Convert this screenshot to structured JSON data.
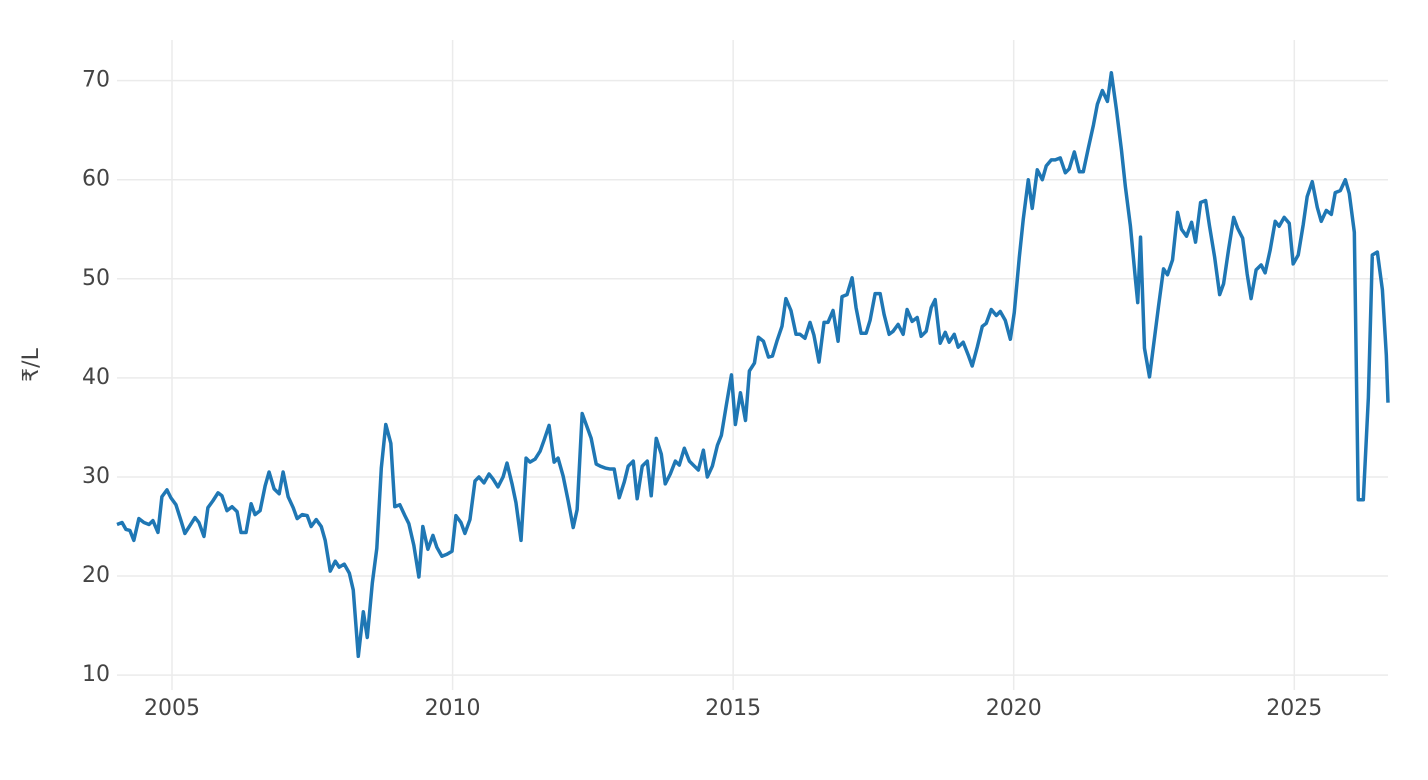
{
  "chart_data": {
    "type": "line",
    "y_label": "₹/L",
    "color": "#1f77b4",
    "grid": true,
    "xlim": [
      2004.02,
      2026.67
    ],
    "xticks": [
      2005,
      2010,
      2015,
      2020,
      2025
    ],
    "ylim": [
      8.5,
      74.1
    ],
    "yticks": [
      10,
      20,
      30,
      40,
      50,
      60,
      70
    ],
    "x": [
      2004.02,
      2004.11,
      2004.18,
      2004.25,
      2004.32,
      2004.41,
      2004.5,
      2004.59,
      2004.66,
      2004.75,
      2004.82,
      2004.91,
      2004.98,
      2005.07,
      2005.16,
      2005.23,
      2005.32,
      2005.41,
      2005.48,
      2005.57,
      2005.64,
      2005.73,
      2005.82,
      2005.89,
      2005.98,
      2006.07,
      2006.16,
      2006.23,
      2006.32,
      2006.41,
      2006.48,
      2006.57,
      2006.66,
      2006.73,
      2006.82,
      2006.91,
      2006.98,
      2007.07,
      2007.16,
      2007.23,
      2007.32,
      2007.41,
      2007.48,
      2007.57,
      2007.66,
      2007.73,
      2007.82,
      2007.91,
      2007.98,
      2008.07,
      2008.16,
      2008.23,
      2008.32,
      2008.41,
      2008.48,
      2008.57,
      2008.65,
      2008.73,
      2008.81,
      2008.9,
      2008.97,
      2009.06,
      2009.15,
      2009.22,
      2009.31,
      2009.4,
      2009.47,
      2009.56,
      2009.65,
      2009.72,
      2009.81,
      2009.9,
      2009.99,
      2010.06,
      2010.15,
      2010.22,
      2010.31,
      2010.4,
      2010.47,
      2010.56,
      2010.65,
      2010.72,
      2010.81,
      2010.9,
      2010.97,
      2011.06,
      2011.13,
      2011.22,
      2011.31,
      2011.38,
      2011.47,
      2011.56,
      2011.63,
      2011.72,
      2011.81,
      2011.88,
      2011.97,
      2012.06,
      2012.15,
      2012.22,
      2012.31,
      2012.4,
      2012.47,
      2012.56,
      2012.63,
      2012.72,
      2012.81,
      2012.88,
      2012.97,
      2013.06,
      2013.13,
      2013.22,
      2013.29,
      2013.38,
      2013.47,
      2013.54,
      2013.63,
      2013.72,
      2013.79,
      2013.88,
      2013.97,
      2014.04,
      2014.13,
      2014.22,
      2014.29,
      2014.38,
      2014.47,
      2014.54,
      2014.63,
      2014.72,
      2014.79,
      2014.88,
      2014.97,
      2015.04,
      2015.13,
      2015.22,
      2015.29,
      2015.38,
      2015.45,
      2015.54,
      2015.63,
      2015.7,
      2015.78,
      2015.87,
      2015.94,
      2016.03,
      2016.12,
      2016.19,
      2016.28,
      2016.37,
      2016.44,
      2016.53,
      2016.62,
      2016.69,
      2016.78,
      2016.87,
      2016.94,
      2017.03,
      2017.12,
      2017.19,
      2017.28,
      2017.37,
      2017.44,
      2017.53,
      2017.62,
      2017.69,
      2017.78,
      2017.85,
      2017.94,
      2018.03,
      2018.1,
      2018.19,
      2018.28,
      2018.35,
      2018.44,
      2018.53,
      2018.6,
      2018.69,
      2018.78,
      2018.85,
      2018.94,
      2019.01,
      2019.1,
      2019.19,
      2019.26,
      2019.35,
      2019.44,
      2019.51,
      2019.6,
      2019.69,
      2019.76,
      2019.85,
      2019.94,
      2020.01,
      2020.1,
      2020.17,
      2020.26,
      2020.33,
      2020.42,
      2020.51,
      2020.58,
      2020.67,
      2020.74,
      2020.83,
      2020.92,
      2020.99,
      2021.08,
      2021.17,
      2021.24,
      2021.33,
      2021.42,
      2021.49,
      2021.58,
      2021.67,
      2021.74,
      2021.83,
      2021.92,
      2021.99,
      2022.08,
      2022.17,
      2022.21,
      2022.26,
      2022.33,
      2022.42,
      2022.49,
      2022.58,
      2022.67,
      2022.74,
      2022.83,
      2022.92,
      2022.99,
      2023.08,
      2023.17,
      2023.24,
      2023.33,
      2023.42,
      2023.49,
      2023.58,
      2023.67,
      2023.74,
      2023.83,
      2023.92,
      2023.99,
      2024.08,
      2024.16,
      2024.23,
      2024.32,
      2024.41,
      2024.48,
      2024.57,
      2024.66,
      2024.73,
      2024.82,
      2024.91,
      2024.98,
      2025.07,
      2025.16,
      2025.23,
      2025.32,
      2025.41,
      2025.48,
      2025.57,
      2025.66,
      2025.73,
      2025.82,
      2025.91,
      2025.98,
      2026.07,
      2026.14,
      2026.23,
      2026.32,
      2026.39,
      2026.48,
      2026.57,
      2026.64,
      2026.67
    ],
    "values": [
      25.2,
      25.4,
      24.7,
      24.6,
      23.6,
      25.8,
      25.4,
      25.2,
      25.6,
      24.4,
      28.0,
      28.7,
      27.9,
      27.2,
      25.6,
      24.3,
      25.1,
      25.9,
      25.4,
      24.0,
      26.9,
      27.6,
      28.4,
      28.1,
      26.6,
      27.0,
      26.5,
      24.4,
      24.4,
      27.3,
      26.2,
      26.6,
      29.1,
      30.5,
      28.8,
      28.3,
      30.5,
      28.0,
      26.9,
      25.8,
      26.2,
      26.1,
      25.0,
      25.7,
      25.0,
      23.6,
      20.5,
      21.5,
      20.9,
      21.2,
      20.3,
      18.6,
      11.9,
      16.4,
      13.8,
      19.3,
      22.8,
      30.9,
      35.3,
      33.4,
      27.0,
      27.2,
      26.1,
      25.3,
      23.1,
      19.9,
      25.0,
      22.7,
      24.1,
      22.9,
      22.0,
      22.2,
      22.5,
      26.1,
      25.4,
      24.3,
      25.7,
      29.6,
      30.0,
      29.4,
      30.3,
      29.8,
      29.0,
      30.0,
      31.4,
      29.3,
      27.4,
      23.6,
      31.9,
      31.5,
      31.8,
      32.6,
      33.7,
      35.2,
      31.5,
      31.9,
      30.1,
      27.6,
      24.9,
      26.7,
      36.4,
      35.0,
      33.9,
      31.3,
      31.1,
      30.9,
      30.8,
      30.8,
      27.9,
      29.5,
      31.1,
      31.6,
      27.8,
      31.1,
      31.6,
      28.1,
      33.9,
      32.3,
      29.3,
      30.3,
      31.6,
      31.2,
      32.9,
      31.6,
      31.2,
      30.7,
      32.7,
      30.0,
      31.1,
      33.2,
      34.2,
      37.3,
      40.3,
      35.3,
      38.5,
      35.7,
      40.7,
      41.5,
      44.1,
      43.7,
      42.1,
      42.2,
      43.7,
      45.2,
      48.0,
      46.8,
      44.4,
      44.4,
      44.0,
      45.6,
      44.3,
      41.6,
      45.6,
      45.6,
      46.8,
      43.7,
      48.2,
      48.4,
      50.1,
      47.1,
      44.5,
      44.5,
      45.8,
      48.5,
      48.5,
      46.4,
      44.4,
      44.7,
      45.4,
      44.4,
      46.9,
      45.7,
      46.1,
      44.2,
      44.7,
      47.1,
      47.9,
      43.5,
      44.6,
      43.6,
      44.4,
      43.1,
      43.6,
      42.3,
      41.2,
      43.1,
      45.2,
      45.5,
      46.9,
      46.3,
      46.7,
      45.8,
      43.9,
      46.6,
      52.2,
      56.0,
      60.0,
      57.1,
      61.0,
      60.0,
      61.4,
      62.0,
      62.0,
      62.2,
      60.7,
      61.1,
      62.8,
      60.8,
      60.8,
      63.2,
      65.5,
      67.6,
      69.0,
      67.9,
      70.8,
      67.1,
      63.0,
      59.3,
      55.3,
      49.9,
      47.6,
      54.2,
      43.0,
      40.1,
      43.2,
      47.2,
      51.0,
      50.4,
      51.9,
      56.7,
      55.0,
      54.3,
      55.7,
      53.7,
      57.7,
      57.9,
      55.3,
      52.2,
      48.4,
      49.5,
      53.0,
      56.2,
      55.1,
      54.1,
      50.5,
      48.0,
      50.9,
      51.4,
      50.6,
      52.9,
      55.8,
      55.3,
      56.2,
      55.6,
      51.5,
      52.4,
      55.5,
      58.3,
      59.8,
      57.2,
      55.8,
      56.9,
      56.5,
      58.7,
      58.9,
      60.0,
      58.6,
      54.7,
      27.7,
      27.7,
      38.0,
      52.4,
      52.7,
      48.9,
      42.3,
      37.5
    ]
  }
}
